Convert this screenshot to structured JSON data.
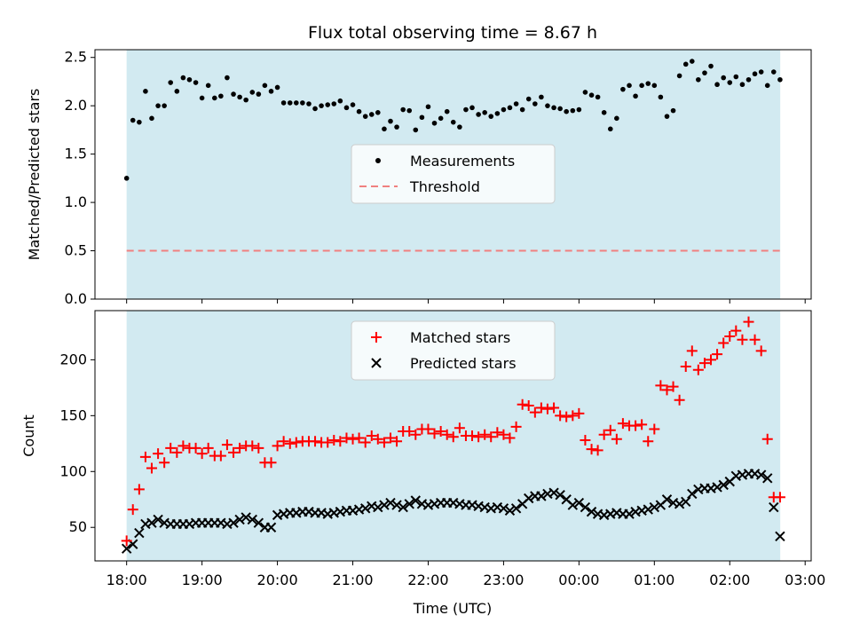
{
  "colors": {
    "shade": "#add8e6",
    "measurement": "#000000",
    "threshold": "#f08080",
    "matched": "#ff0000",
    "predicted": "#000000"
  },
  "chart_data": [
    {
      "type": "scatter",
      "title": "Flux total observing time = 8.67 h",
      "xlabel": "",
      "ylabel": "Matched/Predicted stars",
      "ylim": [
        0,
        2.58
      ],
      "yticks": [
        "0.0",
        "0.5",
        "1.0",
        "1.5",
        "2.0",
        "2.5"
      ],
      "shaded_span_hours": [
        0,
        8.67
      ],
      "threshold": 0.5,
      "legend": [
        "Measurements",
        "Threshold"
      ],
      "legend_position": "center",
      "series": [
        {
          "name": "Measurements",
          "marker": "dot",
          "t": [
            0.0,
            0.083,
            0.167,
            0.25,
            0.333,
            0.417,
            0.5,
            0.583,
            0.667,
            0.75,
            0.833,
            0.917,
            1.0,
            1.083,
            1.167,
            1.25,
            1.333,
            1.417,
            1.5,
            1.583,
            1.667,
            1.75,
            1.833,
            1.917,
            2.0,
            2.083,
            2.167,
            2.25,
            2.333,
            2.417,
            2.5,
            2.583,
            2.667,
            2.75,
            2.833,
            2.917,
            3.0,
            3.083,
            3.167,
            3.25,
            3.333,
            3.417,
            3.5,
            3.583,
            3.667,
            3.75,
            3.833,
            3.917,
            4.0,
            4.083,
            4.167,
            4.25,
            4.333,
            4.417,
            4.5,
            4.583,
            4.667,
            4.75,
            4.833,
            4.917,
            5.0,
            5.083,
            5.167,
            5.25,
            5.333,
            5.417,
            5.5,
            5.583,
            5.667,
            5.75,
            5.833,
            5.917,
            6.0,
            6.083,
            6.167,
            6.25,
            6.333,
            6.417,
            6.5,
            6.583,
            6.667,
            6.75,
            6.833,
            6.917,
            7.0,
            7.083,
            7.167,
            7.25,
            7.333,
            7.417,
            7.5,
            7.583,
            7.667,
            7.75,
            7.833,
            7.917,
            8.0,
            8.083,
            8.167,
            8.25,
            8.333,
            8.417,
            8.5,
            8.583,
            8.667
          ],
          "values": [
            1.25,
            1.85,
            1.83,
            2.15,
            1.87,
            2.0,
            2.0,
            2.24,
            2.15,
            2.29,
            2.27,
            2.24,
            2.08,
            2.21,
            2.08,
            2.1,
            2.29,
            2.12,
            2.09,
            2.06,
            2.14,
            2.12,
            2.21,
            2.15,
            2.19,
            2.03,
            2.03,
            2.03,
            2.03,
            2.02,
            1.97,
            2.0,
            2.01,
            2.02,
            2.05,
            1.98,
            2.01,
            1.94,
            1.89,
            1.91,
            1.93,
            1.76,
            1.84,
            1.78,
            1.96,
            1.95,
            1.75,
            1.88,
            1.99,
            1.82,
            1.87,
            1.94,
            1.83,
            1.78,
            1.96,
            1.98,
            1.91,
            1.93,
            1.89,
            1.92,
            1.96,
            1.98,
            2.02,
            1.96,
            2.07,
            2.02,
            2.09,
            2.0,
            1.98,
            1.97,
            1.94,
            1.95,
            1.96,
            2.14,
            2.11,
            2.09,
            1.93,
            1.76,
            1.87,
            2.17,
            2.21,
            2.1,
            2.21,
            2.23,
            2.21,
            2.09,
            1.89,
            1.95,
            2.31,
            2.43,
            2.46,
            2.27,
            2.34,
            2.41,
            2.22,
            2.29,
            2.24,
            2.3,
            2.22,
            2.27,
            2.33,
            2.35,
            2.21,
            2.35,
            2.27
          ]
        }
      ]
    },
    {
      "type": "scatter",
      "title": "",
      "xlabel": "Time (UTC)",
      "ylabel": "Count",
      "ylim": [
        20,
        244
      ],
      "yticks": [
        "50",
        "100",
        "150",
        "200"
      ],
      "xticks": [
        "18:00",
        "19:00",
        "20:00",
        "21:00",
        "22:00",
        "23:00",
        "00:00",
        "01:00",
        "02:00",
        "03:00"
      ],
      "shaded_span_hours": [
        0,
        8.67
      ],
      "legend": [
        "Matched stars",
        "Predicted stars"
      ],
      "legend_position": "upper center",
      "series": [
        {
          "name": "Matched stars",
          "marker": "plus",
          "t": [
            0.0,
            0.083,
            0.167,
            0.25,
            0.333,
            0.417,
            0.5,
            0.583,
            0.667,
            0.75,
            0.833,
            0.917,
            1.0,
            1.083,
            1.167,
            1.25,
            1.333,
            1.417,
            1.5,
            1.583,
            1.667,
            1.75,
            1.833,
            1.917,
            2.0,
            2.083,
            2.167,
            2.25,
            2.333,
            2.417,
            2.5,
            2.583,
            2.667,
            2.75,
            2.833,
            2.917,
            3.0,
            3.083,
            3.167,
            3.25,
            3.333,
            3.417,
            3.5,
            3.583,
            3.667,
            3.75,
            3.833,
            3.917,
            4.0,
            4.083,
            4.167,
            4.25,
            4.333,
            4.417,
            4.5,
            4.583,
            4.667,
            4.75,
            4.833,
            4.917,
            5.0,
            5.083,
            5.167,
            5.25,
            5.333,
            5.417,
            5.5,
            5.583,
            5.667,
            5.75,
            5.833,
            5.917,
            6.0,
            6.083,
            6.167,
            6.25,
            6.333,
            6.417,
            6.5,
            6.583,
            6.667,
            6.75,
            6.833,
            6.917,
            7.0,
            7.083,
            7.167,
            7.25,
            7.333,
            7.417,
            7.5,
            7.583,
            7.667,
            7.75,
            7.833,
            7.917,
            8.0,
            8.083,
            8.167,
            8.25,
            8.333,
            8.417,
            8.5,
            8.583,
            8.667
          ],
          "values": [
            38,
            66,
            84,
            113,
            103,
            116,
            108,
            121,
            117,
            123,
            121,
            121,
            116,
            121,
            114,
            114,
            124,
            117,
            121,
            123,
            123,
            121,
            108,
            108,
            123,
            127,
            125,
            126,
            127,
            127,
            127,
            126,
            126,
            128,
            127,
            130,
            129,
            130,
            126,
            132,
            129,
            126,
            130,
            127,
            136,
            136,
            133,
            138,
            138,
            134,
            136,
            133,
            131,
            139,
            132,
            132,
            131,
            133,
            131,
            135,
            133,
            130,
            140,
            160,
            159,
            153,
            157,
            156,
            157,
            150,
            149,
            150,
            152,
            128,
            120,
            119,
            133,
            137,
            129,
            143,
            141,
            141,
            142,
            127,
            138,
            177,
            173,
            176,
            164,
            194,
            208,
            191,
            197,
            200,
            205,
            215,
            221,
            226,
            218,
            234,
            218,
            208,
            129,
            77,
            77
          ]
        },
        {
          "name": "Predicted stars",
          "marker": "x",
          "t": [
            0.0,
            0.083,
            0.167,
            0.25,
            0.333,
            0.417,
            0.5,
            0.583,
            0.667,
            0.75,
            0.833,
            0.917,
            1.0,
            1.083,
            1.167,
            1.25,
            1.333,
            1.417,
            1.5,
            1.583,
            1.667,
            1.75,
            1.833,
            1.917,
            2.0,
            2.083,
            2.167,
            2.25,
            2.333,
            2.417,
            2.5,
            2.583,
            2.667,
            2.75,
            2.833,
            2.917,
            3.0,
            3.083,
            3.167,
            3.25,
            3.333,
            3.417,
            3.5,
            3.583,
            3.667,
            3.75,
            3.833,
            3.917,
            4.0,
            4.083,
            4.167,
            4.25,
            4.333,
            4.417,
            4.5,
            4.583,
            4.667,
            4.75,
            4.833,
            4.917,
            5.0,
            5.083,
            5.167,
            5.25,
            5.333,
            5.417,
            5.5,
            5.583,
            5.667,
            5.75,
            5.833,
            5.917,
            6.0,
            6.083,
            6.167,
            6.25,
            6.333,
            6.417,
            6.5,
            6.583,
            6.667,
            6.75,
            6.833,
            6.917,
            7.0,
            7.083,
            7.167,
            7.25,
            7.333,
            7.417,
            7.5,
            7.583,
            7.667,
            7.75,
            7.833,
            7.917,
            8.0,
            8.083,
            8.167,
            8.25,
            8.333,
            8.417,
            8.5,
            8.583,
            8.667
          ],
          "values": [
            31,
            35,
            45,
            53,
            54,
            57,
            54,
            53,
            53,
            53,
            53,
            54,
            54,
            54,
            54,
            54,
            53,
            54,
            57,
            59,
            57,
            54,
            50,
            50,
            61,
            62,
            63,
            63,
            64,
            64,
            63,
            63,
            62,
            63,
            64,
            65,
            65,
            66,
            67,
            69,
            68,
            70,
            72,
            70,
            68,
            71,
            74,
            71,
            70,
            71,
            72,
            72,
            72,
            71,
            70,
            70,
            69,
            68,
            67,
            68,
            67,
            65,
            67,
            71,
            76,
            78,
            78,
            80,
            81,
            79,
            75,
            70,
            72,
            68,
            64,
            62,
            61,
            62,
            63,
            62,
            62,
            64,
            65,
            66,
            68,
            70,
            75,
            72,
            71,
            73,
            80,
            84,
            85,
            85,
            86,
            88,
            91,
            96,
            97,
            98,
            98,
            97,
            94,
            68,
            42
          ]
        }
      ]
    }
  ]
}
